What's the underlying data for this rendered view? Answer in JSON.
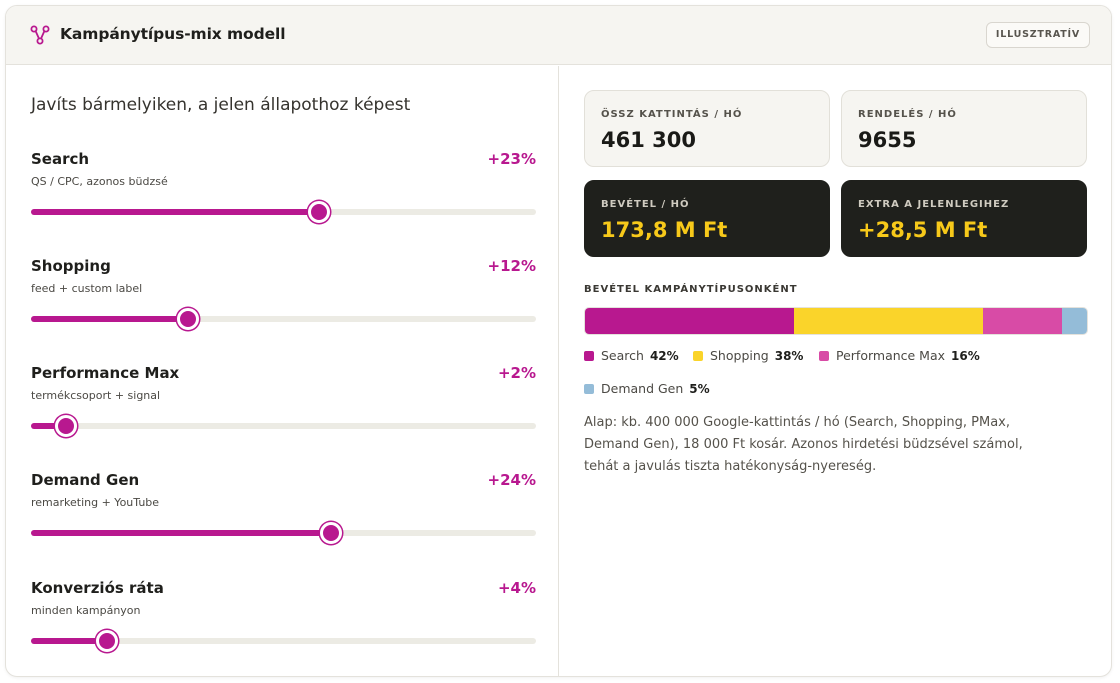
{
  "header": {
    "title": "Kampánytípus-mix modell",
    "badge": "ILLUSZTRATÍV",
    "logo_icon": "branch-network-icon"
  },
  "controls": {
    "lead": "Javíts bármelyiken, a jelen állapothoz képest",
    "sliders": [
      {
        "name": "Search",
        "sub": "QS / CPC, azonos büdzsé",
        "value": "+23%",
        "level": 0.57
      },
      {
        "name": "Shopping",
        "sub": "feed + custom label",
        "value": "+12%",
        "level": 0.31
      },
      {
        "name": "Performance Max",
        "sub": "termékcsoport + signal",
        "value": "+2%",
        "level": 0.07
      },
      {
        "name": "Demand Gen",
        "sub": "remarketing + YouTube",
        "value": "+24%",
        "level": 0.595
      },
      {
        "name": "Konverziós ráta",
        "sub": "minden kampányon",
        "value": "+4%",
        "level": 0.15
      }
    ]
  },
  "kpis": [
    {
      "label": "ÖSSZ KATTINTÁS / HÓ",
      "value": "461 300",
      "style": "light"
    },
    {
      "label": "RENDELÉS / HÓ",
      "value": "9655",
      "style": "light"
    },
    {
      "label": "BEVÉTEL / HÓ",
      "value": "173,8 M Ft",
      "style": "dark"
    },
    {
      "label": "EXTRA A JELENLEGIHEZ",
      "value": "+28,5 M Ft",
      "style": "dark"
    }
  ],
  "breakdown": {
    "title": "BEVÉTEL KAMPÁNYTÍPUSONKÉNT",
    "segments": [
      {
        "name": "Search",
        "pct": "42%",
        "share": 42,
        "color": "#b8188f"
      },
      {
        "name": "Shopping",
        "pct": "38%",
        "share": 38,
        "color": "#fad42a"
      },
      {
        "name": "Performance Max",
        "pct": "16%",
        "share": 16,
        "color": "#d84ba6"
      },
      {
        "name": "Demand Gen",
        "pct": "5%",
        "share": 5,
        "color": "#94bcd8"
      }
    ]
  },
  "note": "Alap: kb. 400 000 Google-kattintás / hó (Search, Shopping, PMax, Demand Gen), 18 000 Ft kosár. Azonos hirdetési büdzsével számol, tehát a javulás tiszta hatékonyság-nyereség.",
  "colors": {
    "accent": "#b8188f",
    "highlight": "#f7c91a"
  }
}
